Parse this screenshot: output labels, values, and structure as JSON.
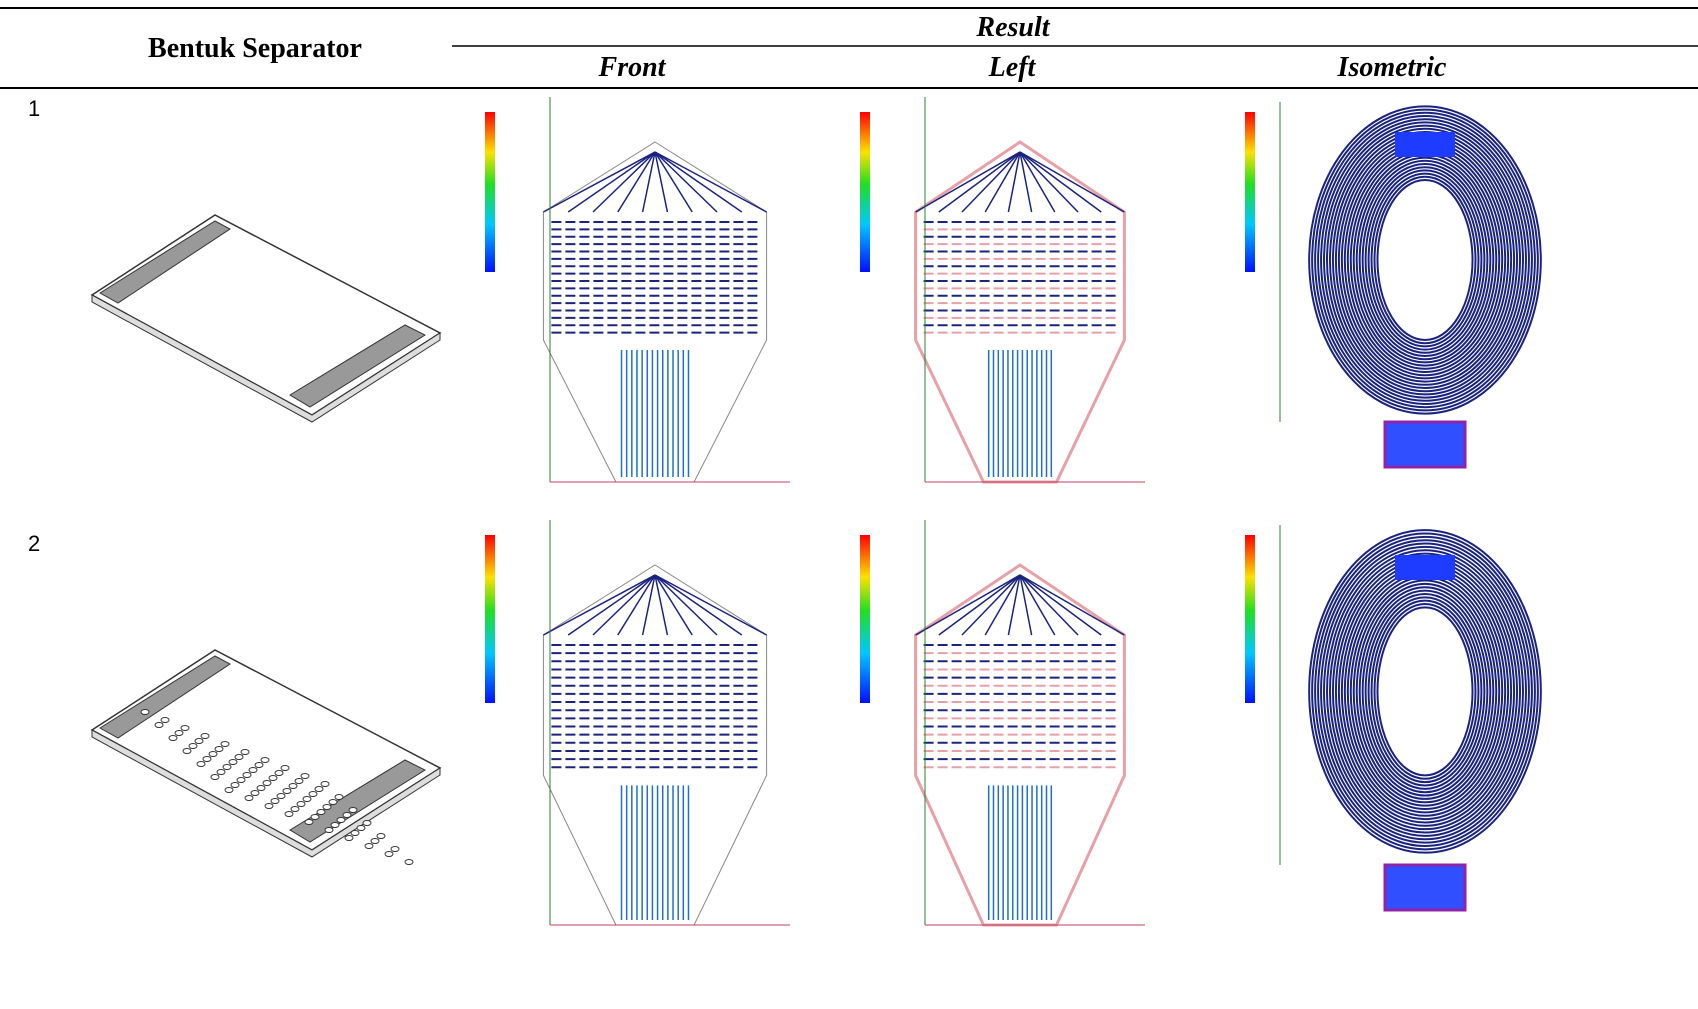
{
  "header": {
    "title": "Bentuk Separator",
    "result": "Result",
    "views": [
      "Front",
      "Left",
      "Isometric"
    ]
  },
  "rows": [
    {
      "label": "1"
    },
    {
      "label": "2"
    }
  ]
}
